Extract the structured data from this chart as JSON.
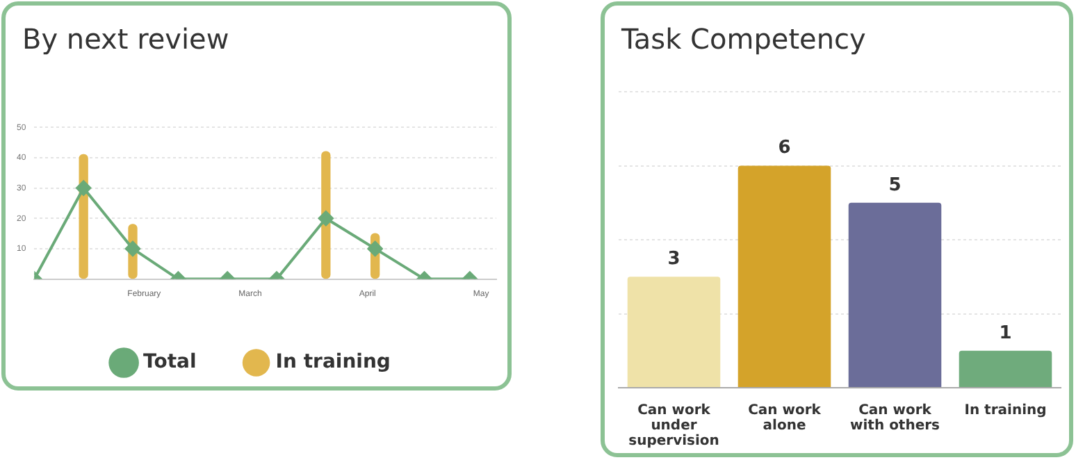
{
  "chart_data": [
    {
      "type": "line",
      "title": "By next review",
      "x": [
        "--01-03",
        "--01-16",
        "--01-29",
        "--02-10",
        "--02-23",
        "--03-08",
        "--03-21",
        "--04-03",
        "--04-16",
        "--04-28"
      ],
      "series": [
        {
          "name": "Total",
          "type": "line",
          "color": "#6aaa78",
          "values": [
            0,
            30,
            10,
            0,
            0,
            0,
            20,
            10,
            0,
            0
          ]
        },
        {
          "name": "In training",
          "type": "bar",
          "color": "#e2b74e",
          "values": [
            null,
            41,
            18,
            null,
            null,
            null,
            42,
            15,
            null,
            null
          ]
        }
      ],
      "xlim": [
        "--01-03",
        "--05-05"
      ],
      "xticks": [
        {
          "value": "--02-01",
          "label": "February"
        },
        {
          "value": "--03-01",
          "label": "March"
        },
        {
          "value": "--04-01",
          "label": "April"
        },
        {
          "value": "--05-01",
          "label": "May"
        }
      ],
      "ylim": [
        0,
        50
      ],
      "yticks": [
        {
          "value": 0,
          "label": null
        },
        10,
        20,
        30,
        40,
        50
      ],
      "grid": "y",
      "marker": "diamond",
      "legend": "bottom"
    },
    {
      "type": "bar",
      "title": "Task Competency",
      "categories": [
        "Can work under supervision",
        "Can work alone",
        "Can work with others",
        "In training"
      ],
      "values": [
        3,
        6,
        5,
        1
      ],
      "colors": [
        "#efe2a8",
        "#d4a32a",
        "#6b6d99",
        "#6fab7c"
      ],
      "data_labels": true,
      "ylim": [
        0,
        8
      ],
      "yticks": [
        {
          "value": 0,
          "label": null
        },
        {
          "value": 2,
          "label": null
        },
        {
          "value": 4,
          "label": null
        },
        {
          "value": 6,
          "label": null
        },
        {
          "value": 8,
          "label": null
        }
      ],
      "grid": "y",
      "tick_labels": "x",
      "legend": false
    }
  ]
}
